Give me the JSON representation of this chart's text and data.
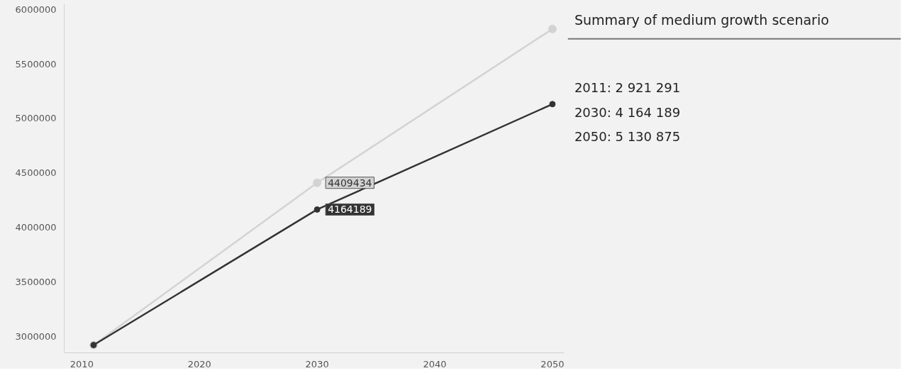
{
  "chart_data": {
    "type": "line",
    "title": "Summary of medium growth scenario",
    "x": [
      2011,
      2030,
      2050
    ],
    "series": [
      {
        "color": "#d3d3d3",
        "values": [
          2921291,
          4409434,
          5820000
        ]
      },
      {
        "color": "#333333",
        "values": [
          2921291,
          4164189,
          5130875
        ]
      }
    ],
    "xlim": [
      2008.5,
      2051
    ],
    "xticks": [
      2010,
      2020,
      2030,
      2040,
      2050
    ],
    "ylim": [
      2850000,
      6050000
    ],
    "yticks": [
      {
        "value": 3000000,
        "label": "3000000"
      },
      {
        "value": 3500000,
        "label": "3500000"
      },
      {
        "value": 4000000,
        "label": "4000000"
      },
      {
        "value": 4500000,
        "label": "4500000"
      },
      {
        "value": 5000000,
        "label": "5000000"
      },
      {
        "value": 5500000,
        "label": "5500000"
      },
      {
        "value": 6000000,
        "label": "6000000"
      }
    ],
    "grid": false,
    "marker": "circle",
    "line_style": "solid",
    "annotations": [
      {
        "text": "4409434",
        "x": 2030,
        "y": 4409434
      },
      {
        "text": "4164189",
        "x": 2030,
        "y": 4164189
      },
      "2011: 2 921 291",
      "2030: 4 164 189",
      "2050: 5 130 875"
    ]
  }
}
